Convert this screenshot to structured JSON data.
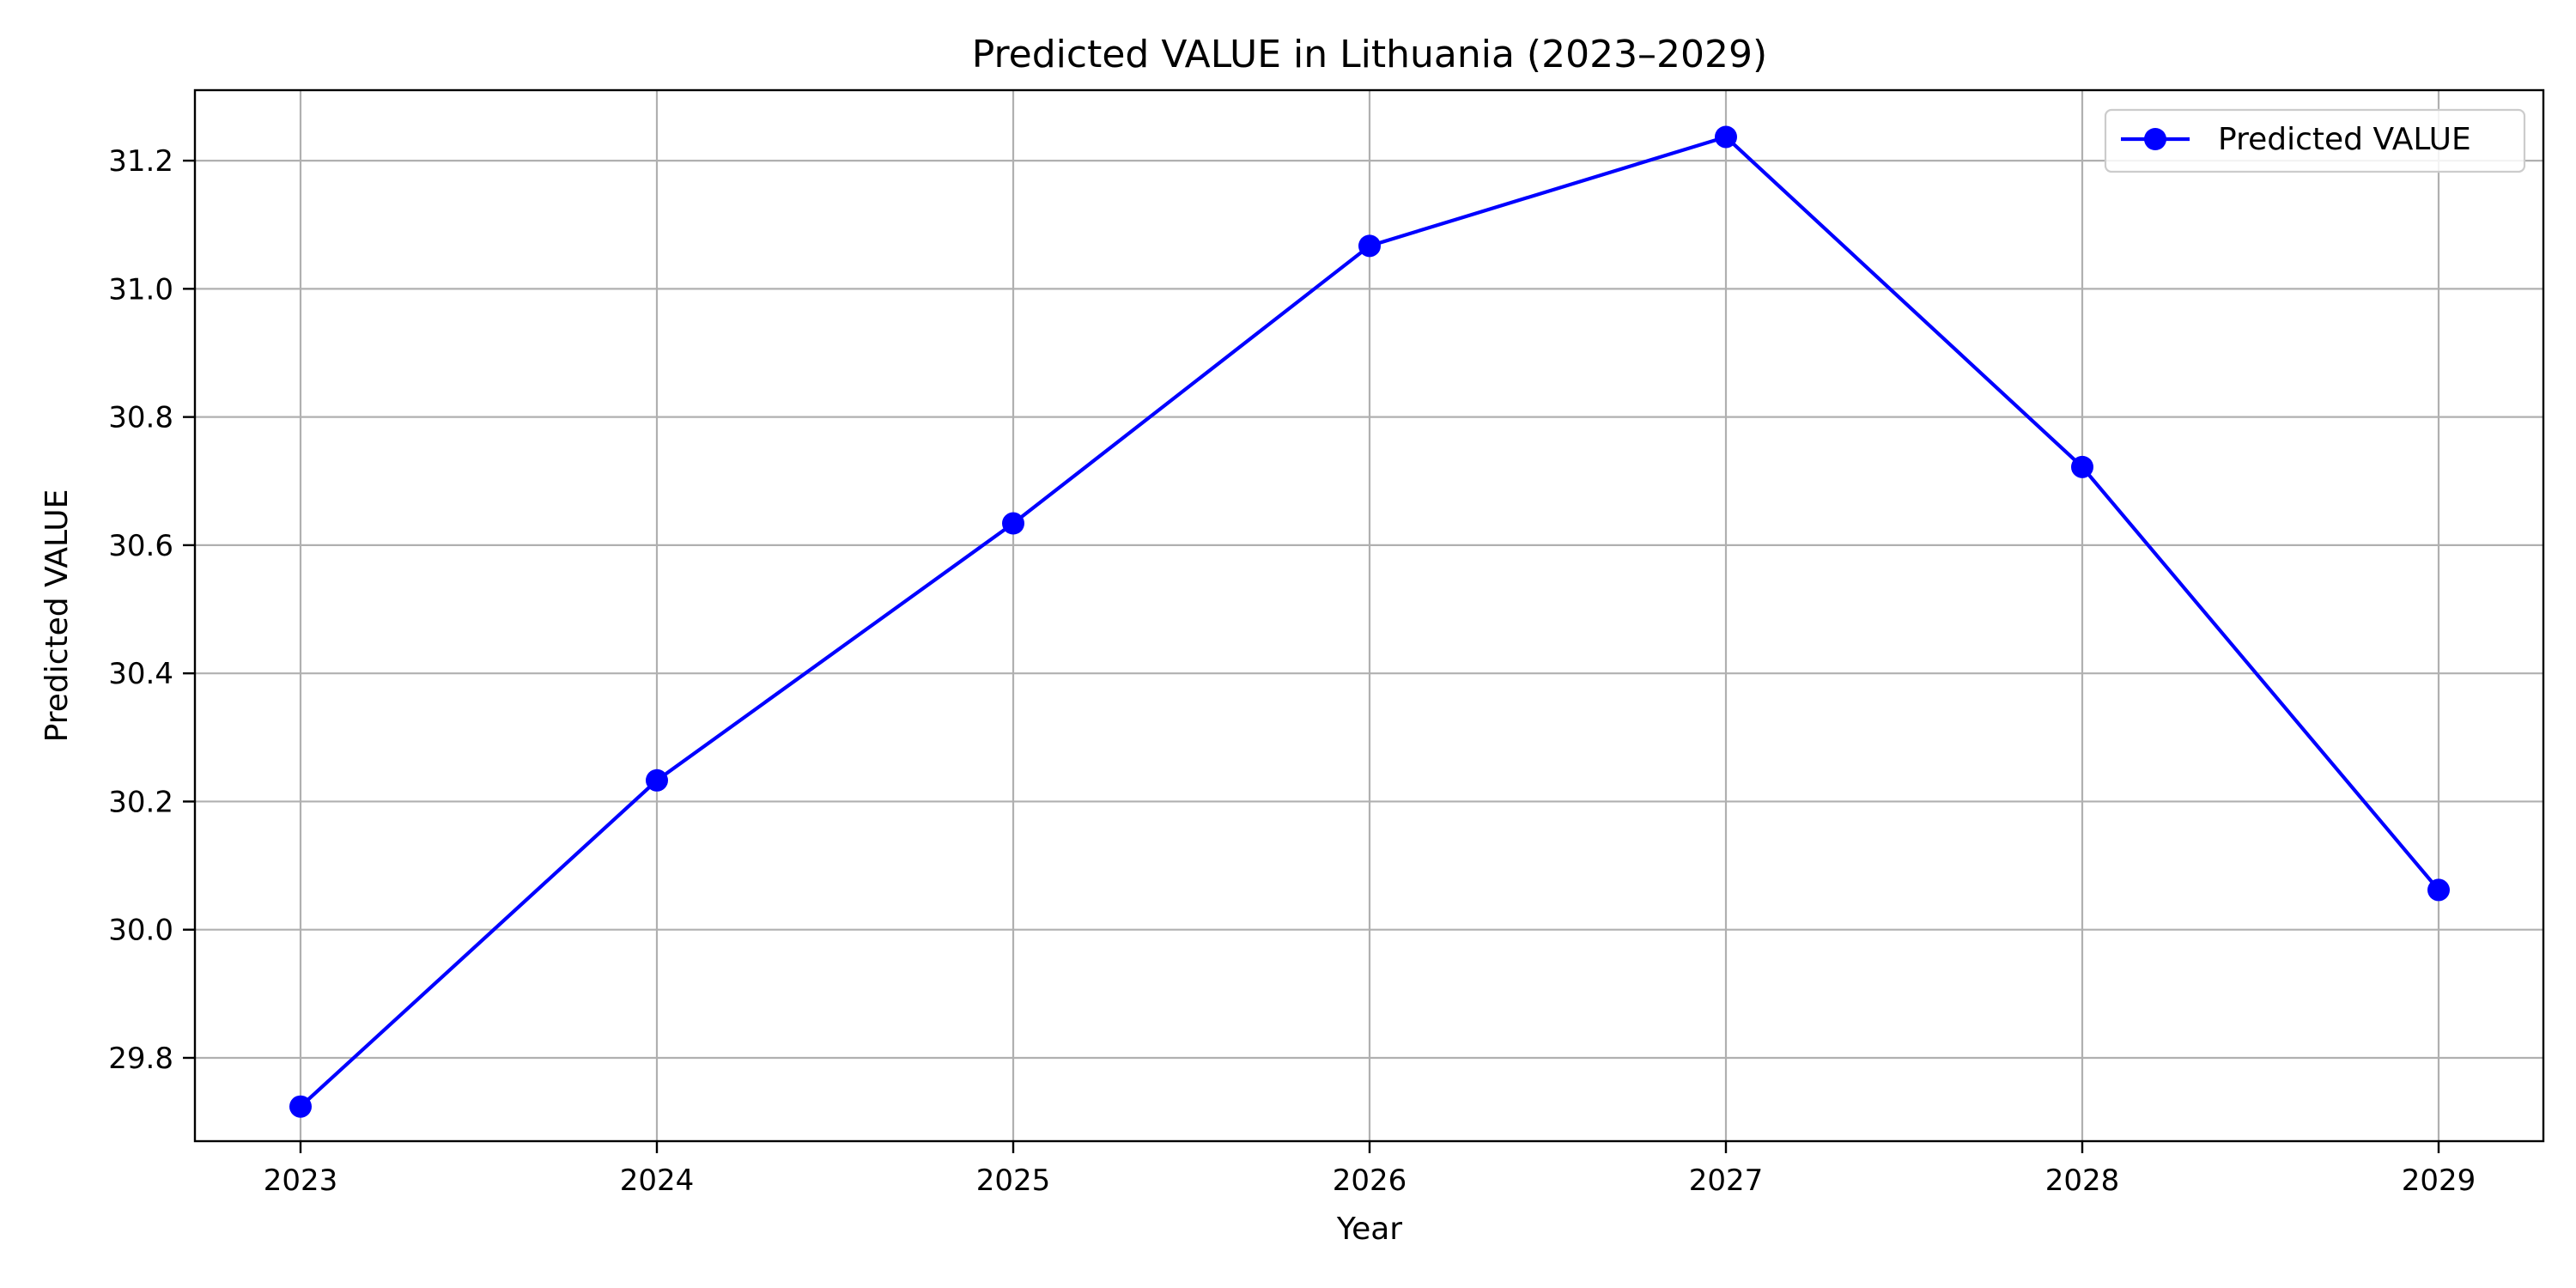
{
  "chart_data": {
    "type": "line",
    "title": "Predicted VALUE in Lithuania (2023–2029)",
    "xlabel": "Year",
    "ylabel": "Predicted VALUE",
    "x": [
      "2023",
      "2024",
      "2025",
      "2026",
      "2027",
      "2028",
      "2029"
    ],
    "series": [
      {
        "name": "Predicted VALUE",
        "color": "#0000ff",
        "marker": "circle",
        "values": [
          29.724,
          30.233,
          30.634,
          31.067,
          31.237,
          30.722,
          30.062
        ]
      }
    ],
    "yticks": [
      "29.8",
      "30.0",
      "30.2",
      "30.4",
      "30.6",
      "30.8",
      "31.0",
      "31.2"
    ],
    "ylim": [
      29.67,
      31.31
    ],
    "grid": true,
    "legend_position": "top-right"
  }
}
